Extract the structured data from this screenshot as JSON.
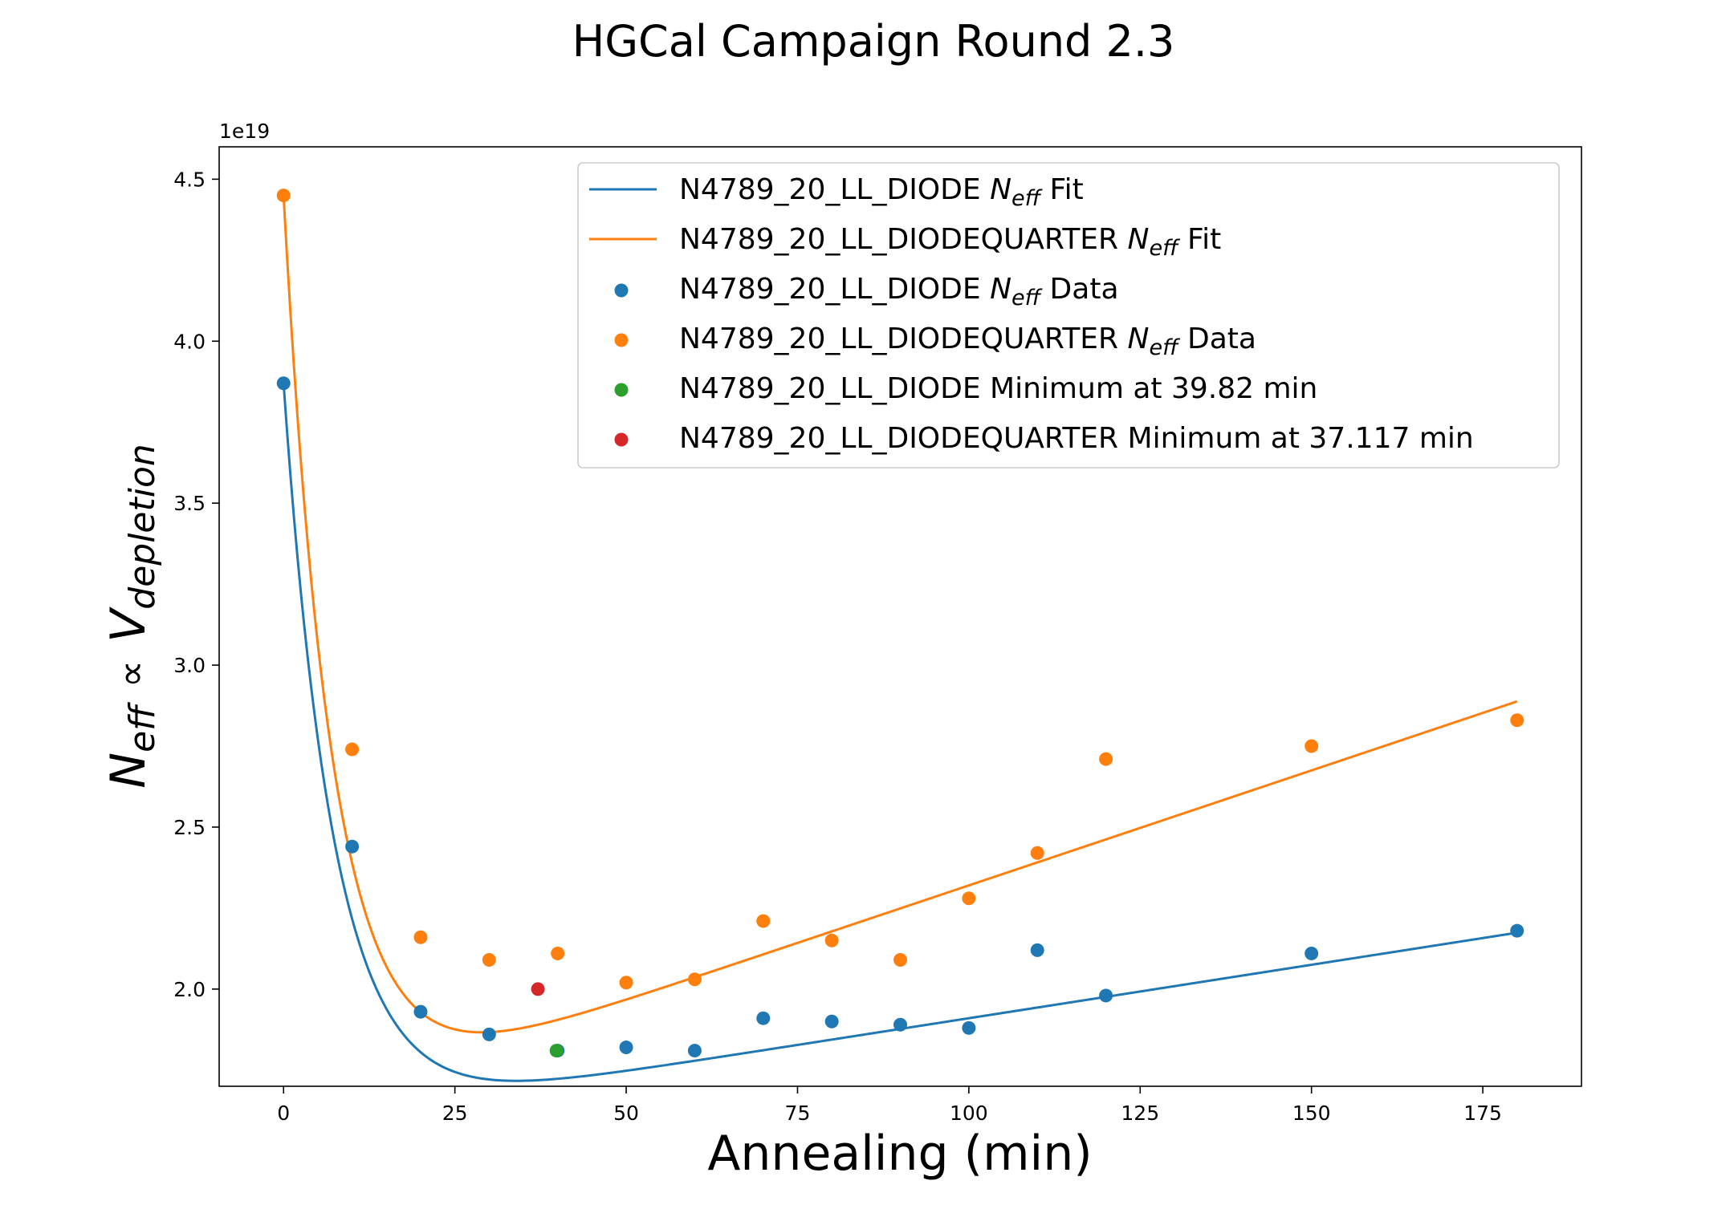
{
  "chart_data": {
    "type": "scatter",
    "title": "HGCal Campaign Round 2.3",
    "xlabel": "Annealing (min)",
    "ylabel": {
      "n": "N",
      "n_sub": "eff",
      "prop": "∝",
      "v": "V",
      "v_sub": "depletion"
    },
    "y_offset_label": "1e19",
    "xlim": [
      -9.4,
      189.4
    ],
    "ylim": [
      1.7,
      4.6
    ],
    "y_scale_exponent": 19,
    "x_ticks": [
      0,
      25,
      50,
      75,
      100,
      125,
      150,
      175
    ],
    "x_tick_labels": [
      "0",
      "25",
      "50",
      "75",
      "100",
      "125",
      "150",
      "175"
    ],
    "y_ticks": [
      2.0,
      2.5,
      3.0,
      3.5,
      4.0,
      4.5
    ],
    "y_tick_labels": [
      "2.0",
      "2.5",
      "3.0",
      "3.5",
      "4.0",
      "4.5"
    ],
    "grid": false,
    "legend_position": "top-right",
    "colors": {
      "diode": "#1f77b4",
      "quarter": "#ff7f0e",
      "diode_min": "#2ca02c",
      "quarter_min": "#d62728"
    },
    "fits": [
      {
        "name": "N4789_20_LL_DIODE",
        "legend_suffix": "Fit",
        "color": "#1f77b4",
        "x_max": 180,
        "model": {
          "offset": 1.58,
          "amplitude": 2.29,
          "tau": 7.5,
          "slope": 0.0033
        }
      },
      {
        "name": "N4789_20_LL_DIODEQUARTER",
        "legend_suffix": "Fit",
        "color": "#ff7f0e",
        "x_max": 180,
        "model": {
          "offset": 1.61,
          "amplitude": 2.84,
          "tau": 7.2,
          "slope": 0.0071
        }
      }
    ],
    "series": [
      {
        "name": "N4789_20_LL_DIODE",
        "legend_suffix": "Data",
        "color": "#1f77b4",
        "x": [
          0,
          10,
          20,
          30,
          40,
          50,
          60,
          70,
          80,
          90,
          100,
          110,
          120,
          150,
          180
        ],
        "y": [
          3.87,
          2.44,
          1.93,
          1.86,
          1.81,
          1.82,
          1.81,
          1.91,
          1.9,
          1.89,
          1.88,
          2.12,
          1.98,
          2.11,
          2.18
        ]
      },
      {
        "name": "N4789_20_LL_DIODEQUARTER",
        "legend_suffix": "Data",
        "color": "#ff7f0e",
        "x": [
          0,
          10,
          20,
          30,
          40,
          50,
          60,
          70,
          80,
          90,
          100,
          110,
          120,
          150,
          180
        ],
        "y": [
          4.45,
          2.74,
          2.16,
          2.09,
          2.11,
          2.02,
          2.03,
          2.21,
          2.15,
          2.09,
          2.28,
          2.42,
          2.71,
          2.75,
          2.83
        ]
      }
    ],
    "minima": [
      {
        "name": "N4789_20_LL_DIODE",
        "legend": "N4789_20_LL_DIODE Minimum at 39.82 min",
        "color": "#2ca02c",
        "x": 39.82,
        "y": 1.81
      },
      {
        "name": "N4789_20_LL_DIODEQUARTER",
        "legend": "N4789_20_LL_DIODEQUARTER Minimum at 37.117 min",
        "color": "#d62728",
        "x": 37.117,
        "y": 2.0
      }
    ],
    "legend_var": {
      "n": "N",
      "n_sub": "eff"
    }
  }
}
